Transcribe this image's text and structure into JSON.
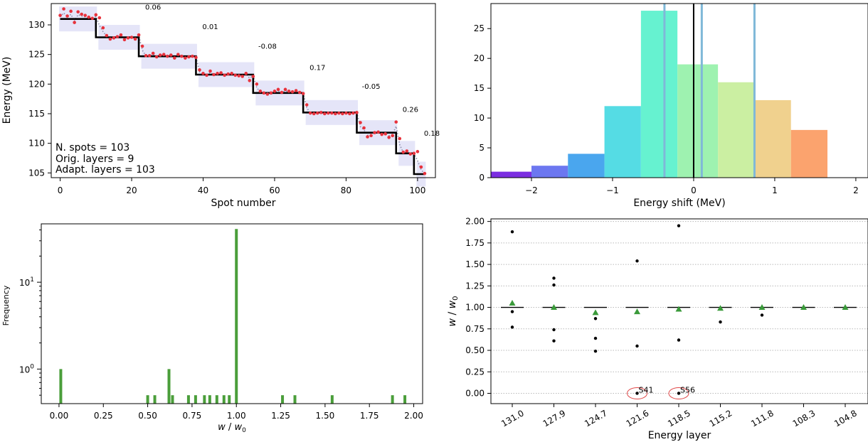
{
  "chart_data": [
    {
      "id": "A",
      "type": "line",
      "xlabel": "Spot number",
      "ylabel": "Energy (MeV)",
      "xlim": [
        -2.5,
        105
      ],
      "ylim": [
        104.2,
        133.6
      ],
      "xticks": [
        0,
        20,
        40,
        60,
        80,
        100
      ],
      "yticks": [
        105,
        110,
        115,
        120,
        125,
        130
      ],
      "grid": false,
      "info_text": [
        "N. spots = 103",
        "Orig. layers = 9",
        "Adapt. layers = 103"
      ],
      "layer_boundaries": [
        0,
        11,
        23,
        39,
        55,
        69,
        84,
        95,
        100,
        103
      ],
      "step_levels": [
        131.0,
        127.9,
        124.7,
        121.6,
        118.5,
        115.2,
        111.8,
        108.3,
        104.8
      ],
      "shift_labels": [
        "0.06",
        "0.01",
        "-0.08",
        "0.17",
        "-0.05",
        "0.26",
        "0.18"
      ],
      "shift_label_positions": [
        [
          26,
          132.6
        ],
        [
          42,
          129.3
        ],
        [
          58,
          126.0
        ],
        [
          72,
          122.4
        ],
        [
          87,
          119.2
        ],
        [
          98,
          115.3
        ],
        [
          104,
          111.3
        ]
      ],
      "spots": [
        [
          0,
          131.6
        ],
        [
          1,
          132.7
        ],
        [
          2,
          131.5
        ],
        [
          3,
          132.3
        ],
        [
          4,
          130.4
        ],
        [
          5,
          132.2
        ],
        [
          6,
          131.8
        ],
        [
          7,
          131.6
        ],
        [
          8,
          131.3
        ],
        [
          9,
          131.1
        ],
        [
          10,
          131.7
        ],
        [
          11,
          131.2
        ],
        [
          12,
          129.5
        ],
        [
          13,
          128.2
        ],
        [
          14,
          127.6
        ],
        [
          15,
          127.8
        ],
        [
          16,
          128.0
        ],
        [
          17,
          128.3
        ],
        [
          18,
          127.5
        ],
        [
          19,
          127.8
        ],
        [
          20,
          127.9
        ],
        [
          21,
          127.6
        ],
        [
          22,
          128.3
        ],
        [
          23,
          126.4
        ],
        [
          24,
          124.8
        ],
        [
          25,
          124.8
        ],
        [
          26,
          125.2
        ],
        [
          27,
          124.6
        ],
        [
          28,
          124.9
        ],
        [
          29,
          125.0
        ],
        [
          30,
          124.7
        ],
        [
          31,
          124.9
        ],
        [
          32,
          124.4
        ],
        [
          33,
          125.0
        ],
        [
          34,
          124.7
        ],
        [
          35,
          124.4
        ],
        [
          36,
          124.6
        ],
        [
          37,
          124.7
        ],
        [
          38,
          124.5
        ],
        [
          39,
          122.4
        ],
        [
          40,
          121.8
        ],
        [
          41,
          121.5
        ],
        [
          42,
          122.2
        ],
        [
          43,
          121.6
        ],
        [
          44,
          121.8
        ],
        [
          45,
          121.9
        ],
        [
          46,
          121.5
        ],
        [
          47,
          121.7
        ],
        [
          48,
          121.8
        ],
        [
          49,
          121.5
        ],
        [
          50,
          121.4
        ],
        [
          51,
          121.3
        ],
        [
          52,
          121.8
        ],
        [
          53,
          120.6
        ],
        [
          54,
          121.3
        ],
        [
          55,
          120.0
        ],
        [
          56,
          118.8
        ],
        [
          57,
          118.5
        ],
        [
          58,
          118.3
        ],
        [
          59,
          118.5
        ],
        [
          60,
          118.8
        ],
        [
          61,
          119.1
        ],
        [
          62,
          118.6
        ],
        [
          63,
          119.1
        ],
        [
          64,
          118.8
        ],
        [
          65,
          118.7
        ],
        [
          66,
          118.9
        ],
        [
          67,
          118.6
        ],
        [
          68,
          118.4
        ],
        [
          69,
          116.5
        ],
        [
          70,
          115.1
        ],
        [
          71,
          115.0
        ],
        [
          72,
          115.1
        ],
        [
          73,
          115.2
        ],
        [
          74,
          115.0
        ],
        [
          75,
          115.1
        ],
        [
          76,
          115.1
        ],
        [
          77,
          115.0
        ],
        [
          78,
          115.1
        ],
        [
          79,
          115.0
        ],
        [
          80,
          115.1
        ],
        [
          81,
          115.0
        ],
        [
          82,
          115.1
        ],
        [
          83,
          115.2
        ],
        [
          84,
          113.5
        ],
        [
          85,
          112.6
        ],
        [
          86,
          111.1
        ],
        [
          87,
          111.3
        ],
        [
          88,
          111.8
        ],
        [
          89,
          111.9
        ],
        [
          90,
          111.5
        ],
        [
          91,
          111.6
        ],
        [
          92,
          111.0
        ],
        [
          93,
          111.3
        ],
        [
          94,
          113.6
        ],
        [
          95,
          110.8
        ],
        [
          96,
          108.5
        ],
        [
          97,
          108.7
        ],
        [
          98,
          108.2
        ],
        [
          99,
          108.3
        ],
        [
          100,
          108.6
        ],
        [
          101,
          106.0
        ],
        [
          102,
          104.9
        ]
      ],
      "series_colors": {
        "spots": "#e8323c",
        "step": "#000000",
        "trend": "#8c8ca8",
        "band": "#dcdcf5"
      }
    },
    {
      "id": "B",
      "type": "bar",
      "xlabel": "Energy shift (MeV)",
      "ylabel": "",
      "xlim": [
        -2.5,
        2.15
      ],
      "ylim": [
        0,
        29.2
      ],
      "xticks": [
        -2,
        -1,
        0,
        1,
        2
      ],
      "xtick_labels": [
        "−2",
        "−1",
        "0",
        "1",
        "2"
      ],
      "yticks": [
        0,
        5,
        10,
        15,
        20,
        25
      ],
      "bins": [
        [
          -2.5,
          -2.0,
          1
        ],
        [
          -2.0,
          -1.55,
          2
        ],
        [
          -1.55,
          -1.1,
          4
        ],
        [
          -1.1,
          -0.65,
          12
        ],
        [
          -0.65,
          -0.2,
          28
        ],
        [
          -0.2,
          0.3,
          19
        ],
        [
          0.3,
          0.75,
          16
        ],
        [
          0.75,
          1.2,
          13
        ],
        [
          1.2,
          1.65,
          8
        ]
      ],
      "bar_colors": [
        "#7b2ee0",
        "#6c77f0",
        "#4aa6ee",
        "#55dce4",
        "#66f2d0",
        "#9ef2b0",
        "#cbefa2",
        "#f0d18e",
        "#fba36e"
      ],
      "vlines_blue": [
        -0.36,
        0.1,
        0.75
      ],
      "vline_black": 0,
      "vline_blue_color": "#7fb8d8"
    },
    {
      "id": "C",
      "type": "bar",
      "xlabel": "w / w₀",
      "ylabel": "Frequency",
      "xlim": [
        -0.1,
        2.05
      ],
      "ylog": true,
      "ylim": [
        0.4,
        47
      ],
      "xticks": [
        0.0,
        0.25,
        0.5,
        0.75,
        1.0,
        1.25,
        1.5,
        1.75,
        2.0
      ],
      "xtick_labels": [
        "0.00",
        "0.25",
        "0.50",
        "0.75",
        "1.00",
        "1.25",
        "1.50",
        "1.75",
        "2.00"
      ],
      "yticks": [
        {
          "v": 1,
          "base": "10",
          "exp": "0"
        },
        {
          "v": 10,
          "base": "10",
          "exp": "1"
        }
      ],
      "bars": [
        [
          0.01,
          1
        ],
        [
          0.5,
          0.5
        ],
        [
          0.54,
          0.5
        ],
        [
          0.62,
          1
        ],
        [
          0.64,
          0.5
        ],
        [
          0.73,
          0.5
        ],
        [
          0.77,
          0.5
        ],
        [
          0.82,
          0.5
        ],
        [
          0.85,
          0.5
        ],
        [
          0.89,
          0.5
        ],
        [
          0.93,
          0.5
        ],
        [
          0.96,
          0.5
        ],
        [
          1.0,
          41
        ],
        [
          1.26,
          0.5
        ],
        [
          1.33,
          0.5
        ],
        [
          1.54,
          0.5
        ],
        [
          1.88,
          0.5
        ],
        [
          1.95,
          0.5
        ]
      ],
      "bar_color": "#4a9e3a"
    },
    {
      "id": "D",
      "type": "scatter",
      "xlabel": "Energy layer",
      "ylabel": "w / w₀",
      "categories": [
        "131.0",
        "127.9",
        "124.7",
        "121.6",
        "118.5",
        "115.2",
        "111.8",
        "108.3",
        "104.8"
      ],
      "ylim": [
        -0.12,
        2.03
      ],
      "yticks": [
        "0.00",
        "0.25",
        "0.50",
        "0.75",
        "1.00",
        "1.25",
        "1.50",
        "1.75",
        "2.00"
      ],
      "grid": "horizontal dotted",
      "points": [
        [
          0,
          1.88
        ],
        [
          0,
          0.95
        ],
        [
          0,
          0.77
        ],
        [
          1,
          1.34
        ],
        [
          1,
          1.26
        ],
        [
          1,
          0.74
        ],
        [
          1,
          0.61
        ],
        [
          2,
          0.87
        ],
        [
          2,
          0.64
        ],
        [
          2,
          0.49
        ],
        [
          3,
          1.54
        ],
        [
          3,
          0.55
        ],
        [
          3,
          0.0
        ],
        [
          4,
          1.95
        ],
        [
          4,
          0.62
        ],
        [
          4,
          0.0
        ],
        [
          5,
          0.83
        ],
        [
          6,
          0.91
        ]
      ],
      "means": [
        1.05,
        1.0,
        0.94,
        0.95,
        0.98,
        0.99,
        1.0,
        1.0,
        1.0
      ],
      "median_line": 1.0,
      "annotations": [
        {
          "cat": 3,
          "y": 0.0,
          "label": "S41"
        },
        {
          "cat": 4,
          "y": 0.0,
          "label": "S56"
        }
      ],
      "mean_color": "#3a9a3a",
      "ring_color": "#e04848"
    }
  ]
}
